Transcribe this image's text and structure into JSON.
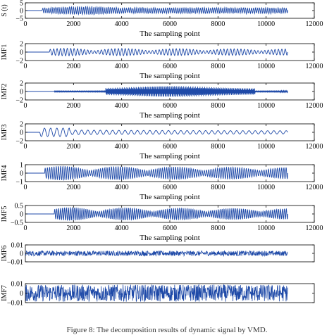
{
  "figure": {
    "caption": "Figure 8: The decomposition results of dynamic signal by VMD."
  },
  "style": {
    "line_color": "#1f4aa8",
    "axis_color": "#000000",
    "background": "#ffffff"
  },
  "chart_data": [
    {
      "type": "line",
      "name": "S (t)",
      "ylabel": "S (t)",
      "xlabel": "The sampling point",
      "xlim": [
        0,
        12000
      ],
      "ylim": [
        -5,
        5
      ],
      "xticks": [
        0,
        2000,
        4000,
        6000,
        8000,
        10000,
        12000
      ],
      "yticks": [
        -5,
        0,
        5
      ],
      "signal": {
        "x_start": 0,
        "x_end": 10900,
        "quiet_until": 700,
        "amplitude": 2.5,
        "cycles": 120,
        "noise": 0.35,
        "style": "composite"
      }
    },
    {
      "type": "line",
      "name": "IMF1",
      "ylabel": "IMF1",
      "xlabel": "The sampling point",
      "xlim": [
        0,
        12000
      ],
      "ylim": [
        -2,
        2
      ],
      "xticks": [
        0,
        2000,
        4000,
        6000,
        8000,
        10000,
        12000
      ],
      "yticks": [
        -2,
        0,
        2
      ],
      "signal": {
        "x_start": 0,
        "x_end": 10900,
        "quiet_until": 1000,
        "amplitude": 0.9,
        "cycles": 70,
        "noise": 0.0,
        "style": "packets"
      }
    },
    {
      "type": "line",
      "name": "IMF2",
      "ylabel": "IMF2",
      "xlabel": "The sampling point",
      "xlim": [
        0,
        12000
      ],
      "ylim": [
        -2,
        2
      ],
      "xticks": [
        0,
        2000,
        4000,
        6000,
        8000,
        10000,
        12000
      ],
      "yticks": [
        -2,
        0,
        2
      ],
      "signal": {
        "x_start": 0,
        "x_end": 10900,
        "quiet_until": 1200,
        "amplitude": 1.3,
        "cycles": 300,
        "noise": 0.0,
        "style": "dense"
      }
    },
    {
      "type": "line",
      "name": "IMF3",
      "ylabel": "IMF3",
      "xlabel": "The sampling point",
      "xlim": [
        0,
        12000
      ],
      "ylim": [
        -2,
        2
      ],
      "xticks": [
        0,
        2000,
        4000,
        6000,
        8000,
        10000,
        12000
      ],
      "yticks": [
        -2,
        0,
        2
      ],
      "signal": {
        "x_start": 0,
        "x_end": 10900,
        "quiet_until": 600,
        "amplitude": 1.0,
        "cycles": 40,
        "noise": 0.0,
        "style": "lowfreq"
      }
    },
    {
      "type": "line",
      "name": "IMF4",
      "ylabel": "IMF4",
      "xlabel": "The sampling point",
      "xlim": [
        0,
        12000
      ],
      "ylim": [
        -1,
        1
      ],
      "xticks": [
        0,
        2000,
        4000,
        6000,
        8000,
        10000,
        12000
      ],
      "yticks": [
        -1,
        0,
        1
      ],
      "signal": {
        "x_start": 0,
        "x_end": 10900,
        "quiet_until": 800,
        "amplitude": 0.85,
        "cycles": 110,
        "noise": 0.0,
        "style": "packets"
      }
    },
    {
      "type": "line",
      "name": "IMF5",
      "ylabel": "IMF5",
      "xlabel": "The sampling point",
      "xlim": [
        0,
        12000
      ],
      "ylim": [
        -0.5,
        0.5
      ],
      "xticks": [
        0,
        2000,
        4000,
        6000,
        8000,
        10000,
        12000
      ],
      "yticks": [
        -0.5,
        0,
        0.5
      ],
      "signal": {
        "x_start": 0,
        "x_end": 10900,
        "quiet_until": 1200,
        "amplitude": 0.4,
        "cycles": 120,
        "noise": 0.0,
        "style": "packets"
      }
    },
    {
      "type": "line",
      "name": "IMF6",
      "ylabel": "IMF6",
      "xlabel": "",
      "xlim": [
        0,
        12000
      ],
      "ylim": [
        -0.01,
        0.01
      ],
      "xticks": [],
      "yticks": [
        -0.01,
        0,
        0.01
      ],
      "signal": {
        "x_start": 0,
        "x_end": 10900,
        "quiet_until": 0,
        "amplitude": 0.003,
        "cycles": 0,
        "noise": 0.003,
        "style": "noise"
      }
    },
    {
      "type": "line",
      "name": "IMF7",
      "ylabel": "IMF7",
      "xlabel": "",
      "xlim": [
        0,
        12000
      ],
      "ylim": [
        -0.01,
        0.01
      ],
      "xticks": [],
      "yticks": [
        -0.01,
        0,
        0.01
      ],
      "signal": {
        "x_start": 0,
        "x_end": 10900,
        "quiet_until": 0,
        "amplitude": 0.009,
        "cycles": 0,
        "noise": 0.009,
        "style": "noise"
      }
    }
  ]
}
